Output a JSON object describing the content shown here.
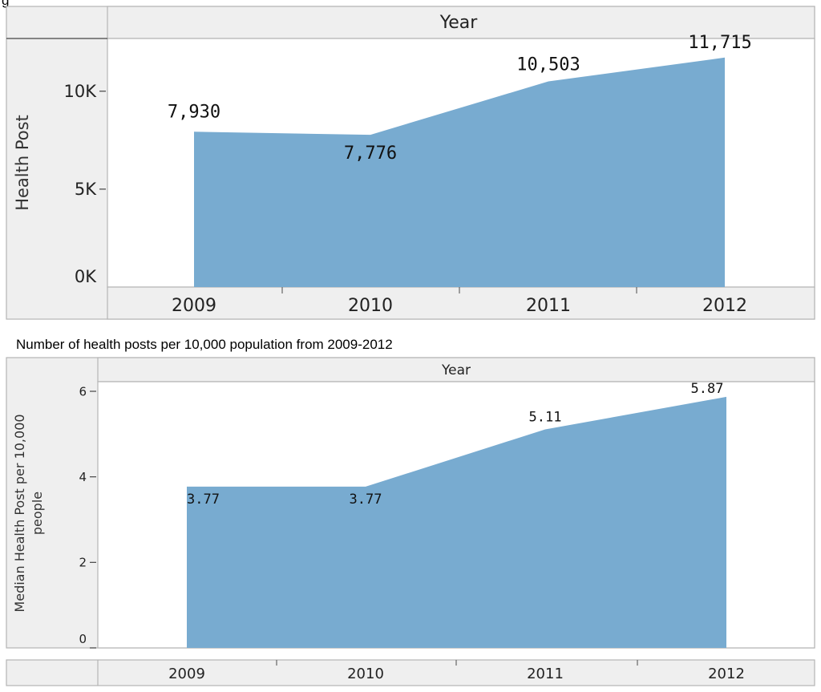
{
  "figure_caption_fragment": "g",
  "chart_data": [
    {
      "type": "area",
      "column_header": "Year",
      "categories": [
        "2009",
        "2010",
        "2011",
        "2012"
      ],
      "values": [
        7930,
        7776,
        10503,
        11715
      ],
      "value_labels": [
        "7,930",
        "7,776",
        "10,503",
        "11,715"
      ],
      "ylabel": "Health Post",
      "yticks": [
        0,
        5000,
        10000
      ],
      "ytick_labels": [
        "0K",
        "5K",
        "10K"
      ],
      "ylim": [
        0,
        12200
      ],
      "color": "#78abd0"
    },
    {
      "type": "area",
      "title": "Number of health posts per 10,000 population from 2009-2012",
      "column_header": "Year",
      "categories": [
        "2009",
        "2010",
        "2011",
        "2012"
      ],
      "values": [
        3.77,
        3.77,
        5.11,
        5.87
      ],
      "value_labels": [
        "3.77",
        "3.77",
        "5.11",
        "5.87"
      ],
      "ylabel_lines": [
        "Median Health Post per 10,000",
        "people"
      ],
      "yticks": [
        0,
        2,
        4,
        6
      ],
      "ytick_labels": [
        "0",
        "2",
        "4",
        "6"
      ],
      "ylim": [
        0,
        6.0
      ],
      "color": "#78abd0"
    }
  ]
}
